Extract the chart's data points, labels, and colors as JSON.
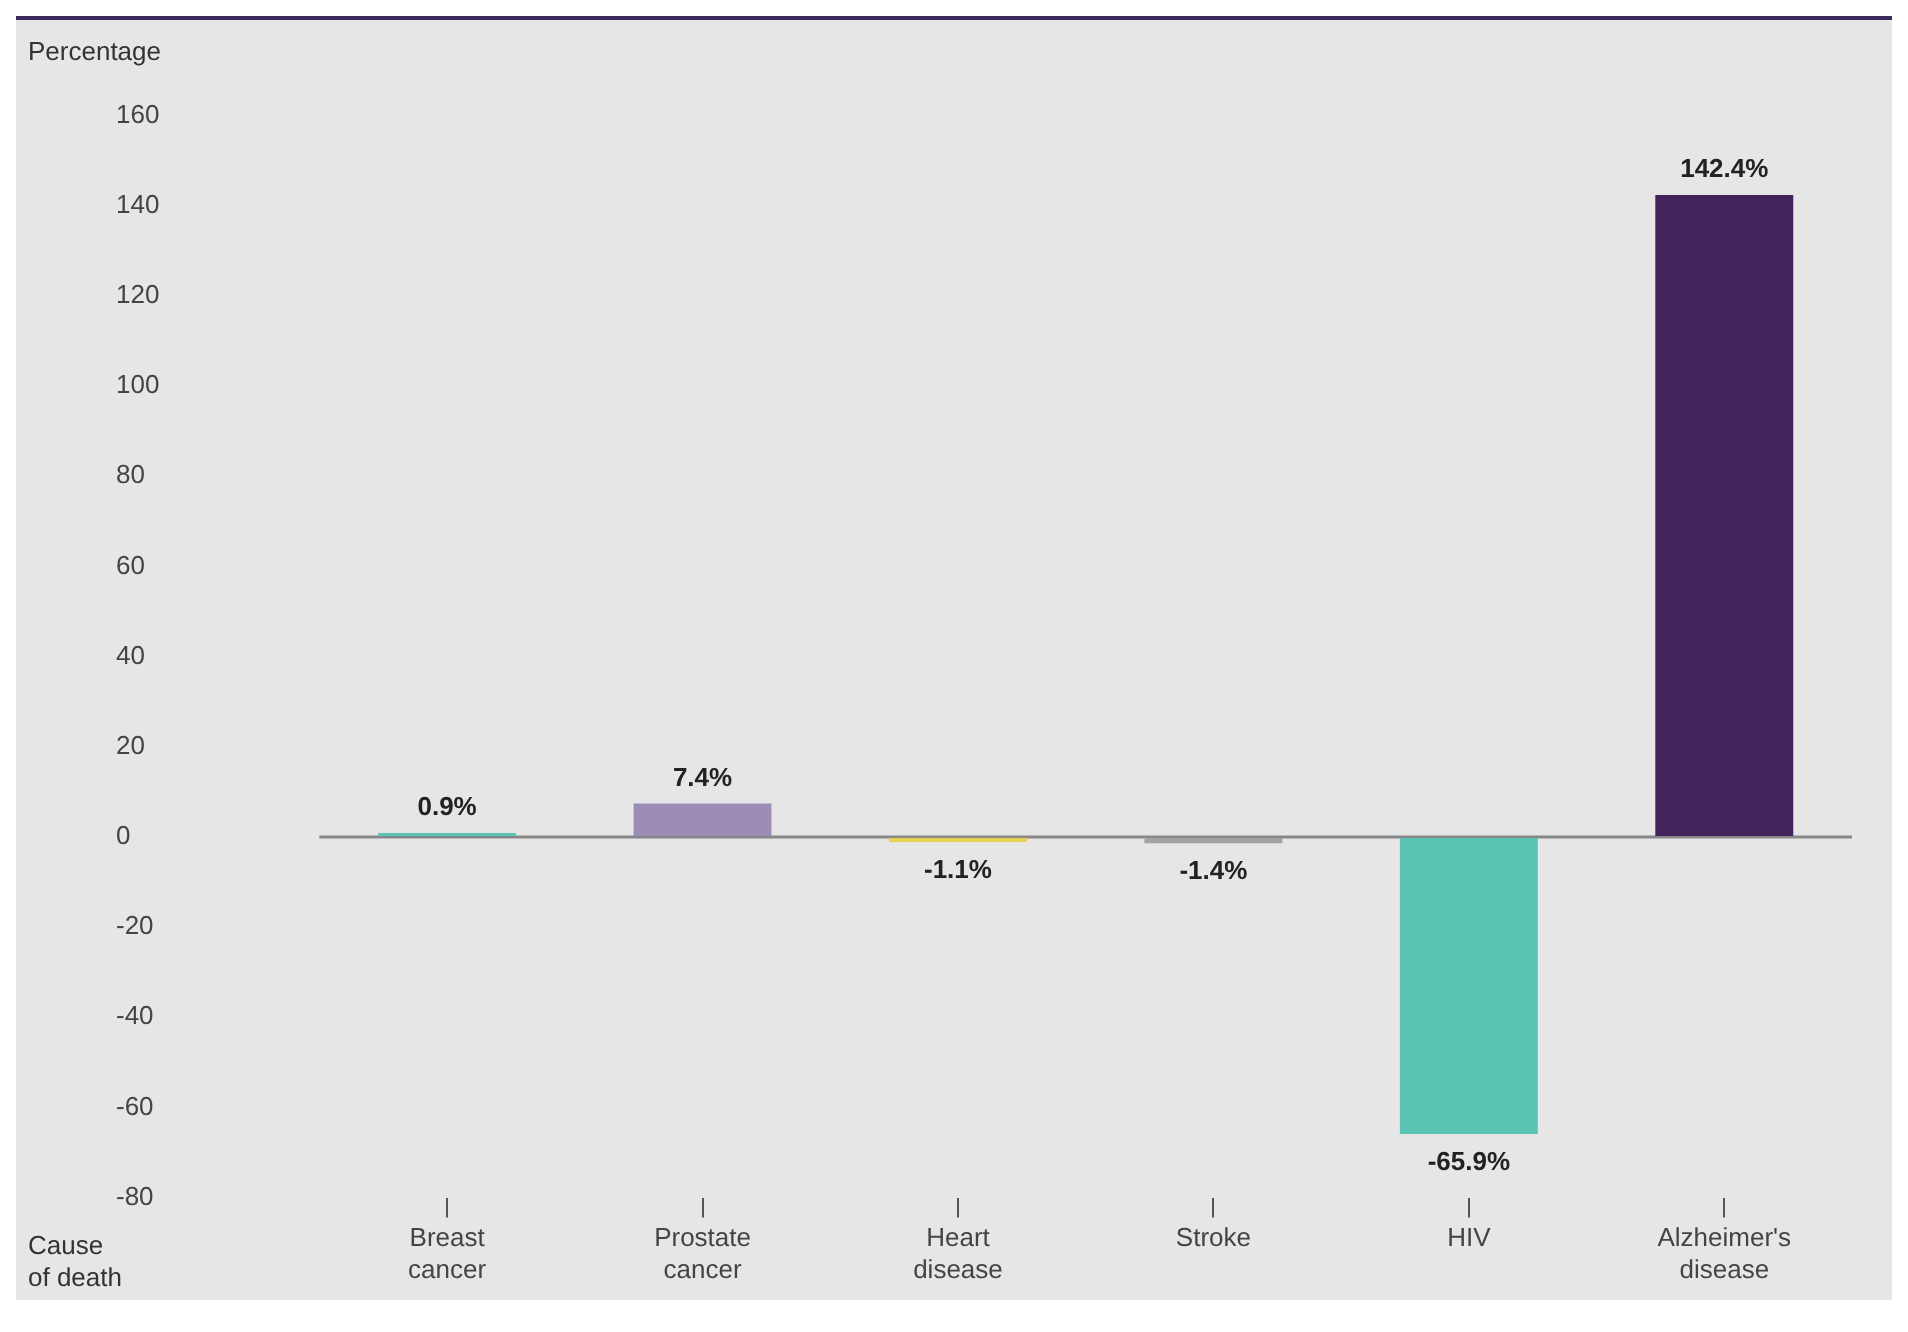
{
  "chart_data": {
    "type": "bar",
    "ylabel": "Percentage",
    "xlabel": "Cause of death",
    "categories": [
      "Breast cancer",
      "Prostate cancer",
      "Heart disease",
      "Stroke",
      "HIV",
      "Alzheimer's disease"
    ],
    "values": [
      0.9,
      7.4,
      -1.1,
      -1.4,
      -65.9,
      142.4
    ],
    "colors": [
      "#5bc4b4",
      "#9d8db6",
      "#e6d44e",
      "#a3a3a3",
      "#5bc4b4",
      "#44225c"
    ],
    "value_labels": [
      "0.9%",
      "7.4%",
      "-1.1%",
      "-1.4%",
      "-65.9%",
      "142.4%"
    ],
    "ylim": [
      -80,
      160
    ],
    "ref_lines": [
      {
        "axis": "y",
        "value": 0,
        "color": "#888888"
      }
    ],
    "yticks": [
      -80,
      -60,
      -40,
      -20,
      0,
      20,
      40,
      60,
      80,
      100,
      120,
      140,
      160
    ],
    "grid": false,
    "legend": false
  }
}
